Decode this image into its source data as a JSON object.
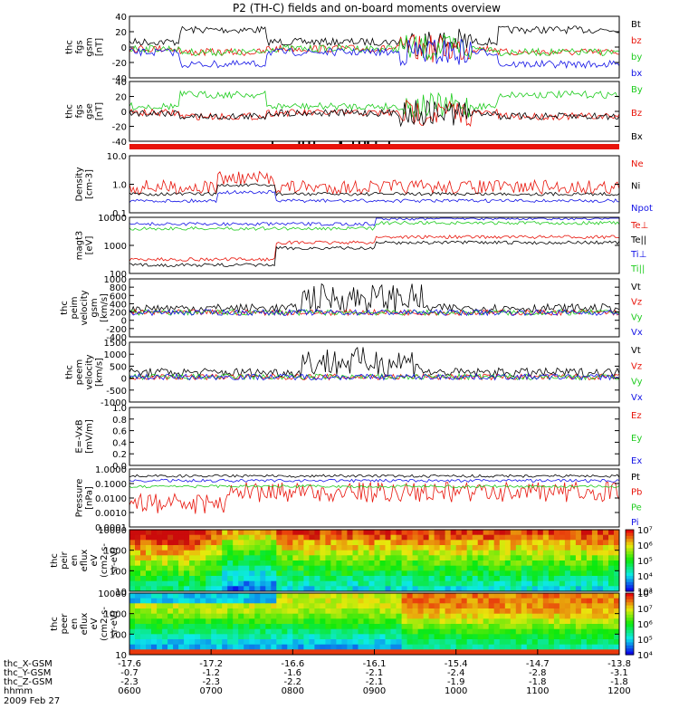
{
  "title": "P2 (TH-C) fields and on-board moments overview",
  "date": "2009 Feb 27",
  "colors": {
    "black": "#000000",
    "red": "#e8140a",
    "green": "#1ecc1e",
    "blue": "#1414e6"
  },
  "chart_data": [
    {
      "type": "line",
      "id": "fgs_gsm",
      "ylabel_lines": [
        "thc",
        "fgs",
        "gsm",
        "[nT]"
      ],
      "ylim": [
        -40,
        40
      ],
      "yticks": [
        "40",
        "20",
        "0",
        "-20",
        "-40"
      ],
      "series": [
        {
          "name": "Bt",
          "color": "black"
        },
        {
          "name": "bz",
          "color": "red"
        },
        {
          "name": "by",
          "color": "green"
        },
        {
          "name": "bx",
          "color": "blue"
        }
      ]
    },
    {
      "type": "line",
      "id": "fgs_gse",
      "ylabel_lines": [
        "thc",
        "fgs",
        "gse",
        "[nT]"
      ],
      "ylim": [
        -50,
        50
      ],
      "yticks": [
        "40",
        "20",
        "0",
        "-20",
        "-40"
      ],
      "series": [
        {
          "name": "By",
          "color": "green"
        },
        {
          "name": "Bz",
          "color": "red"
        },
        {
          "name": "Bx",
          "color": "black"
        }
      ]
    },
    {
      "type": "line",
      "id": "density",
      "ylabel_lines": [
        "Density",
        "[cm-3]"
      ],
      "ylim": [
        0.1,
        10
      ],
      "log": true,
      "yticks": [
        "10.0",
        "1.0",
        "0.1"
      ],
      "series": [
        {
          "name": "Ne",
          "color": "red"
        },
        {
          "name": "Ni",
          "color": "black"
        },
        {
          "name": "Npot",
          "color": "blue"
        }
      ]
    },
    {
      "type": "line",
      "id": "temperature",
      "ylabel_lines": [
        "magt3",
        "[eV]"
      ],
      "ylim": [
        100,
        10000
      ],
      "log": true,
      "yticks": [
        "10000",
        "1000",
        "100"
      ],
      "series": [
        {
          "name": "Te⊥",
          "color": "red"
        },
        {
          "name": "Te||",
          "color": "black"
        },
        {
          "name": "Ti⊥",
          "color": "blue"
        },
        {
          "name": "Ti||",
          "color": "green"
        }
      ]
    },
    {
      "type": "line",
      "id": "peim_velocity",
      "ylabel_lines": [
        "thc",
        "peim",
        "velocity",
        "gsm",
        "[km/s]"
      ],
      "ylim": [
        -400,
        1000
      ],
      "yticks": [
        "1000",
        "800",
        "600",
        "400",
        "200",
        "0",
        "-200",
        "-400"
      ],
      "series": [
        {
          "name": "Vt",
          "color": "black"
        },
        {
          "name": "Vz",
          "color": "red"
        },
        {
          "name": "Vy",
          "color": "green"
        },
        {
          "name": "Vx",
          "color": "blue"
        }
      ]
    },
    {
      "type": "line",
      "id": "peem_velocity",
      "ylabel_lines": [
        "thc",
        "peem",
        "velocity",
        "[km/s]"
      ],
      "ylim": [
        -1000,
        1500
      ],
      "yticks": [
        "1500",
        "1000",
        "500",
        "0",
        "-500",
        "-1000"
      ],
      "series": [
        {
          "name": "Vt",
          "color": "black"
        },
        {
          "name": "Vz",
          "color": "red"
        },
        {
          "name": "Vy",
          "color": "green"
        },
        {
          "name": "Vx",
          "color": "blue"
        }
      ]
    },
    {
      "type": "line",
      "id": "efield",
      "ylabel_lines": [
        "E=-VxB",
        "[mV/m]"
      ],
      "ylim": [
        0,
        1
      ],
      "yticks": [
        "1.0",
        "0.8",
        "0.6",
        "0.4",
        "0.2",
        "0.0"
      ],
      "series": [
        {
          "name": "Ez",
          "color": "red"
        },
        {
          "name": "Ey",
          "color": "green"
        },
        {
          "name": "Ex",
          "color": "blue"
        }
      ]
    },
    {
      "type": "line",
      "id": "pressure",
      "ylabel_lines": [
        "Pressure",
        "[nPa]"
      ],
      "ylim": [
        0.0001,
        1
      ],
      "log": true,
      "yticks": [
        "1.0000",
        "0.1000",
        "0.0100",
        "0.0010",
        "0.0001"
      ],
      "series": [
        {
          "name": "Pt",
          "color": "black"
        },
        {
          "name": "Pb",
          "color": "red"
        },
        {
          "name": "Pe",
          "color": "green"
        },
        {
          "name": "Pi",
          "color": "blue"
        }
      ]
    },
    {
      "type": "heatmap",
      "id": "ion_spectrogram",
      "ylabel_lines": [
        "thc",
        "peir",
        "en",
        "eflux",
        "eV",
        "(cm2-s-",
        "sr-eV)"
      ],
      "ylim": [
        10,
        10000
      ],
      "log": true,
      "yticks": [
        "10000",
        "1000",
        "100",
        "10"
      ],
      "colorbar_ticks": [
        "10⁷",
        "10⁶",
        "10⁵",
        "10⁴",
        "10³"
      ]
    },
    {
      "type": "heatmap",
      "id": "electron_spectrogram",
      "ylabel_lines": [
        "thc",
        "peer",
        "en",
        "eflux",
        "eV",
        "(cm2-s-",
        "sr-eV)"
      ],
      "ylim": [
        10,
        10000
      ],
      "log": true,
      "yticks": [
        "10000",
        "1000",
        "100",
        "10"
      ],
      "colorbar_ticks": [
        "10⁸",
        "10⁷",
        "10⁶",
        "10⁵",
        "10⁴"
      ]
    }
  ],
  "x_axis": {
    "row_labels": [
      "thc_X-GSM",
      "thc_Y-GSM",
      "thc_Z-GSM",
      "hhmm"
    ],
    "ticks": [
      {
        "x": "-17.6",
        "y": "-0.7",
        "z": "-2.3",
        "t": "0600"
      },
      {
        "x": "-17.2",
        "y": "-1.2",
        "z": "-2.3",
        "t": "0700"
      },
      {
        "x": "-16.6",
        "y": "-1.6",
        "z": "-2.2",
        "t": "0800"
      },
      {
        "x": "-16.1",
        "y": "-2.1",
        "z": "-2.1",
        "t": "0900"
      },
      {
        "x": "-15.4",
        "y": "-2.4",
        "z": "-1.9",
        "t": "1000"
      },
      {
        "x": "-14.7",
        "y": "-2.8",
        "z": "-1.8",
        "t": "1100"
      },
      {
        "x": "-13.8",
        "y": "-3.1",
        "z": "-1.8",
        "t": "1200"
      }
    ]
  }
}
